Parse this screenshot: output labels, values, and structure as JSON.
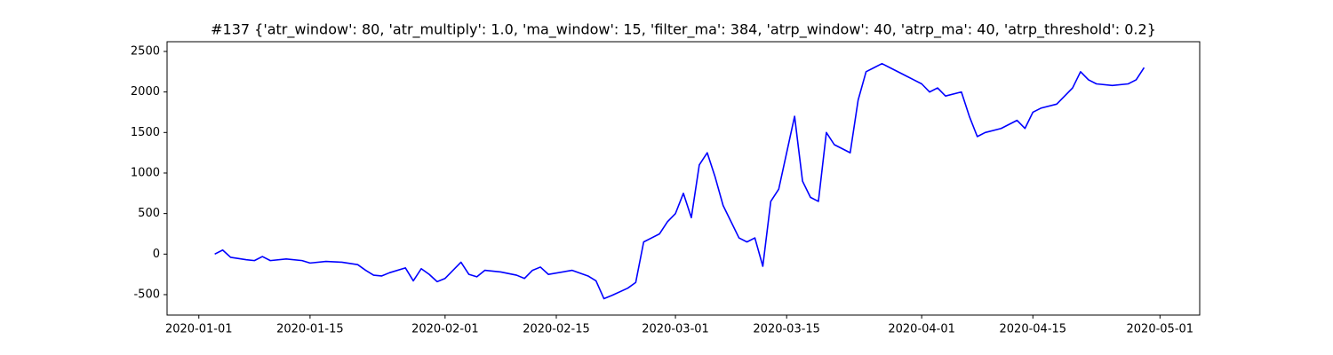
{
  "chart_data": {
    "type": "line",
    "title": "#137 {'atr_window': 80, 'atr_multiply': 1.0, 'ma_window': 15, 'filter_ma': 384, 'atrp_window': 40, 'atrp_ma': 40, 'atrp_threshold': 0.2}",
    "x": [
      "2020-01-03",
      "2020-01-04",
      "2020-01-05",
      "2020-01-07",
      "2020-01-08",
      "2020-01-09",
      "2020-01-10",
      "2020-01-12",
      "2020-01-14",
      "2020-01-15",
      "2020-01-17",
      "2020-01-19",
      "2020-01-21",
      "2020-01-22",
      "2020-01-23",
      "2020-01-24",
      "2020-01-25",
      "2020-01-27",
      "2020-01-28",
      "2020-01-29",
      "2020-01-30",
      "2020-01-31",
      "2020-02-01",
      "2020-02-03",
      "2020-02-04",
      "2020-02-05",
      "2020-02-06",
      "2020-02-08",
      "2020-02-10",
      "2020-02-11",
      "2020-02-12",
      "2020-02-13",
      "2020-02-14",
      "2020-02-17",
      "2020-02-19",
      "2020-02-20",
      "2020-02-21",
      "2020-02-22",
      "2020-02-24",
      "2020-02-25",
      "2020-02-26",
      "2020-02-27",
      "2020-02-28",
      "2020-02-29",
      "2020-03-01",
      "2020-03-02",
      "2020-03-03",
      "2020-03-04",
      "2020-03-05",
      "2020-03-06",
      "2020-03-07",
      "2020-03-09",
      "2020-03-10",
      "2020-03-11",
      "2020-03-12",
      "2020-03-13",
      "2020-03-14",
      "2020-03-16",
      "2020-03-17",
      "2020-03-18",
      "2020-03-19",
      "2020-03-20",
      "2020-03-21",
      "2020-03-23",
      "2020-03-24",
      "2020-03-25",
      "2020-03-26",
      "2020-03-27",
      "2020-03-28",
      "2020-03-30",
      "2020-03-31",
      "2020-04-01",
      "2020-04-02",
      "2020-04-03",
      "2020-04-04",
      "2020-04-06",
      "2020-04-07",
      "2020-04-08",
      "2020-04-09",
      "2020-04-11",
      "2020-04-13",
      "2020-04-14",
      "2020-04-15",
      "2020-04-16",
      "2020-04-18",
      "2020-04-20",
      "2020-04-21",
      "2020-04-22",
      "2020-04-23",
      "2020-04-25",
      "2020-04-27",
      "2020-04-28",
      "2020-04-29"
    ],
    "series": [
      {
        "color": "#0000ff",
        "values": [
          0,
          50,
          -40,
          -70,
          -80,
          -30,
          -80,
          -60,
          -80,
          -110,
          -90,
          -100,
          -130,
          -200,
          -260,
          -270,
          -230,
          -170,
          -330,
          -180,
          -250,
          -340,
          -300,
          -100,
          -250,
          -280,
          -200,
          -220,
          -260,
          -300,
          -200,
          -160,
          -250,
          -200,
          -270,
          -330,
          -550,
          -510,
          -420,
          -350,
          150,
          200,
          250,
          400,
          500,
          750,
          450,
          1100,
          1250,
          950,
          600,
          200,
          150,
          200,
          -150,
          650,
          800,
          1700,
          900,
          700,
          650,
          1500,
          1350,
          1250,
          1900,
          2250,
          2300,
          2350,
          2300,
          2200,
          2150,
          2100,
          2000,
          2050,
          1950,
          2000,
          1700,
          1450,
          1500,
          1550,
          1650,
          1550,
          1750,
          1800,
          1850,
          2050,
          2250,
          2150,
          2100,
          2080,
          2100,
          2150,
          2300
        ]
      }
    ],
    "xlim": [
      "2019-12-28",
      "2020-05-06"
    ],
    "xticks": [
      "2020-01-01",
      "2020-01-15",
      "2020-02-01",
      "2020-02-15",
      "2020-03-01",
      "2020-03-15",
      "2020-04-01",
      "2020-04-15",
      "2020-05-01"
    ],
    "ylim": [
      -752,
      2620
    ],
    "yticks": [
      -500,
      0,
      500,
      1000,
      1500,
      2000,
      2500
    ],
    "grid": false
  }
}
